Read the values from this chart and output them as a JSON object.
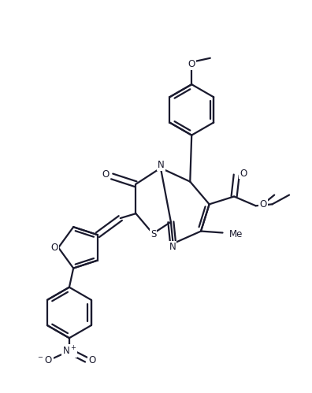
{
  "background_color": "#ffffff",
  "line_color": "#1a1a2e",
  "line_width": 1.6,
  "font_size": 8.5,
  "figsize": [
    3.96,
    4.99
  ],
  "dpi": 100,
  "xlim": [
    0,
    10
  ],
  "ylim": [
    0,
    12.6
  ]
}
